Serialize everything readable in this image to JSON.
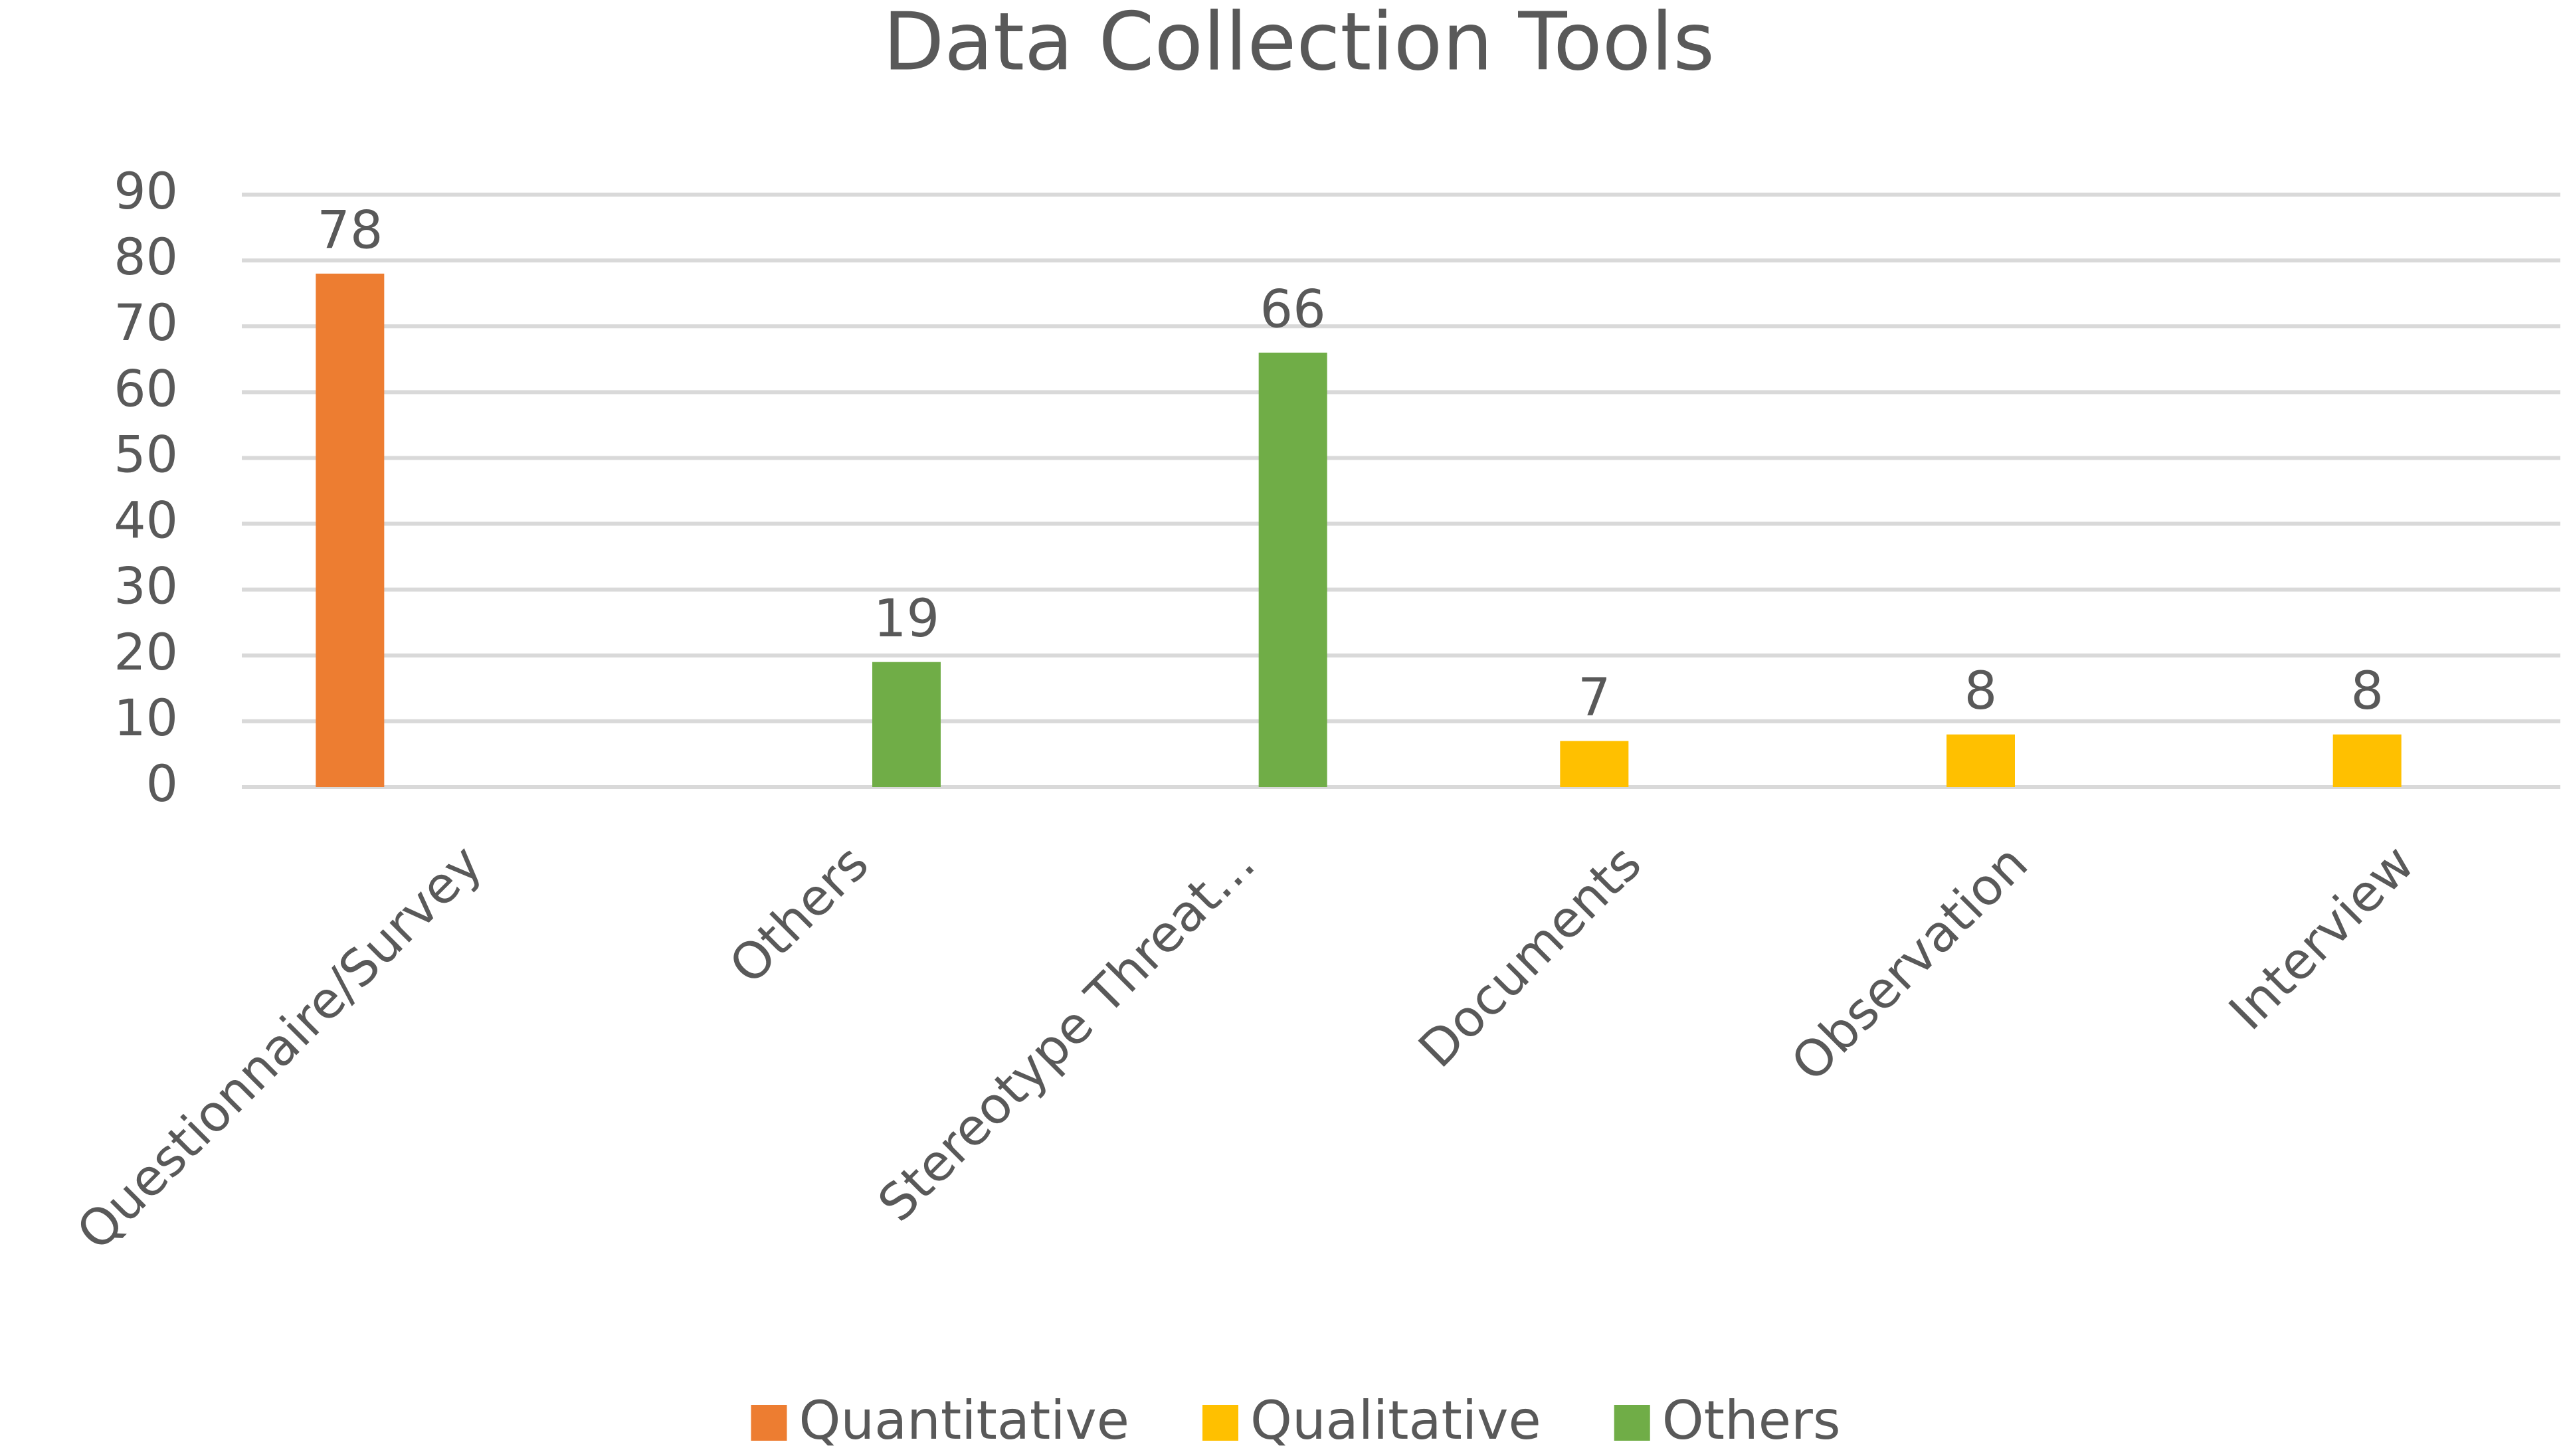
{
  "chart_data": {
    "type": "bar",
    "title": "Data Collection Tools",
    "categories": [
      "Questionnaire/Survey",
      "Others",
      "Stereotype Threat...",
      "Documents",
      "Observation",
      "Interview"
    ],
    "series": [
      {
        "name": "Quantitative",
        "color": "#ED7D31",
        "values": [
          78,
          null,
          null,
          null,
          null,
          null
        ]
      },
      {
        "name": "Qualitative",
        "color": "#FFC000",
        "values": [
          null,
          null,
          null,
          7,
          8,
          8
        ]
      },
      {
        "name": "Others",
        "color": "#70AD47",
        "values": [
          null,
          19,
          66,
          null,
          null,
          null
        ]
      }
    ],
    "ylim": [
      0,
      90
    ],
    "yticks": [
      0,
      10,
      20,
      30,
      40,
      50,
      60,
      70,
      80,
      90
    ],
    "grid": true,
    "legend": "bottom"
  }
}
